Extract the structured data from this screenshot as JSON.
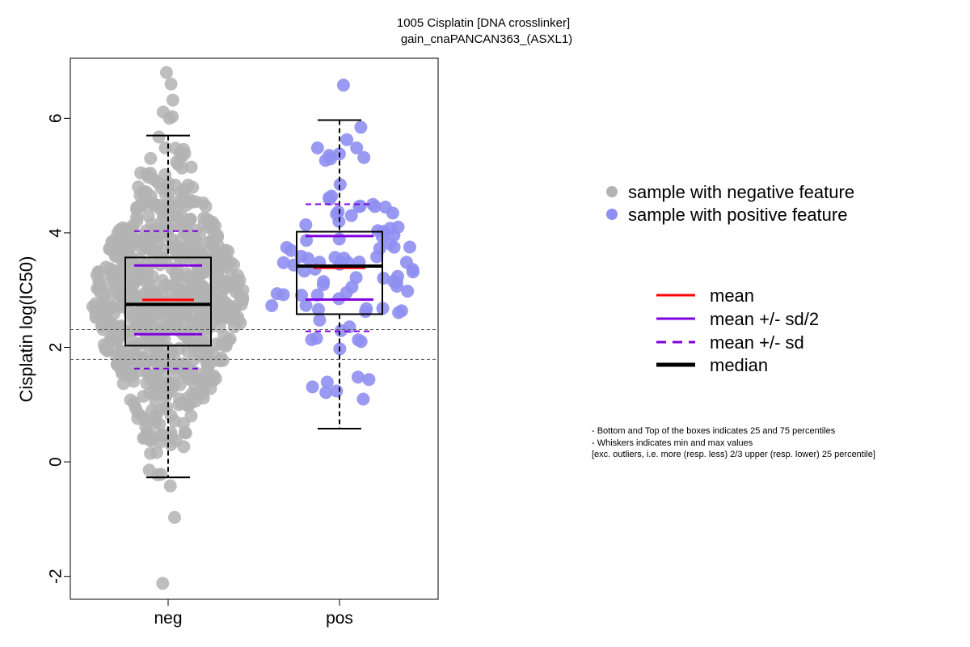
{
  "chart_data": {
    "type": "box-beeswarm",
    "title_line1": "1005 Cisplatin [DNA crosslinker]",
    "title_line2": "gain_cnaPANCAN363_(ASXL1)",
    "xlabel": "",
    "ylabel": "Cisplatin log(IC50)",
    "categories": [
      "neg",
      "pos"
    ],
    "ylim": [
      -2.4,
      7.05
    ],
    "yticks": [
      -2,
      0,
      2,
      4,
      6
    ],
    "reference_lines": [
      1.79,
      2.31
    ],
    "colors": {
      "neg": "#b3b3b3",
      "pos": "#8f8ff2",
      "mean": "#ff0000",
      "sd": "#8000e0",
      "median": "#000000",
      "refline": "#555555"
    },
    "groups": [
      {
        "name": "neg",
        "n_points": 720,
        "min": -0.27,
        "q1": 2.03,
        "median": 2.75,
        "q3": 3.57,
        "max": 5.7,
        "mean": 2.83,
        "sd": 1.2,
        "outliers": [
          6.0,
          6.03,
          6.11,
          6.32,
          6.6,
          6.8,
          -0.42,
          -0.97,
          -2.12
        ],
        "density_mu": 2.8,
        "density_sigma": 1.15,
        "density_lo": -0.3,
        "density_hi": 5.75
      },
      {
        "name": "pos",
        "n_points": 95,
        "min": 0.58,
        "q1": 2.58,
        "median": 3.42,
        "q3": 4.02,
        "max": 5.97,
        "mean": 3.39,
        "sd": 1.11,
        "outliers": [
          6.58
        ],
        "density_mu": 3.3,
        "density_sigma": 1.05,
        "density_lo": 0.58,
        "density_hi": 5.97
      }
    ],
    "legend": [
      {
        "label": "sample with negative feature",
        "kind": "dot",
        "color_key": "neg"
      },
      {
        "label": "sample with positive feature",
        "kind": "dot",
        "color_key": "pos"
      },
      {
        "label": "mean",
        "kind": "line",
        "color_key": "mean"
      },
      {
        "label": "mean +/- sd/2",
        "kind": "line",
        "color_key": "sd"
      },
      {
        "label": "mean +/- sd",
        "kind": "dashed",
        "color_key": "sd"
      },
      {
        "label": "median",
        "kind": "thick",
        "color_key": "median"
      }
    ],
    "notes": [
      "- Bottom and Top of the boxes indicates 25 and 75 percentiles",
      "- Whiskers indicates min and max values",
      "[exc. outliers, i.e. more (resp. less) 2/3 upper (resp. lower) 25 percentile]"
    ]
  }
}
